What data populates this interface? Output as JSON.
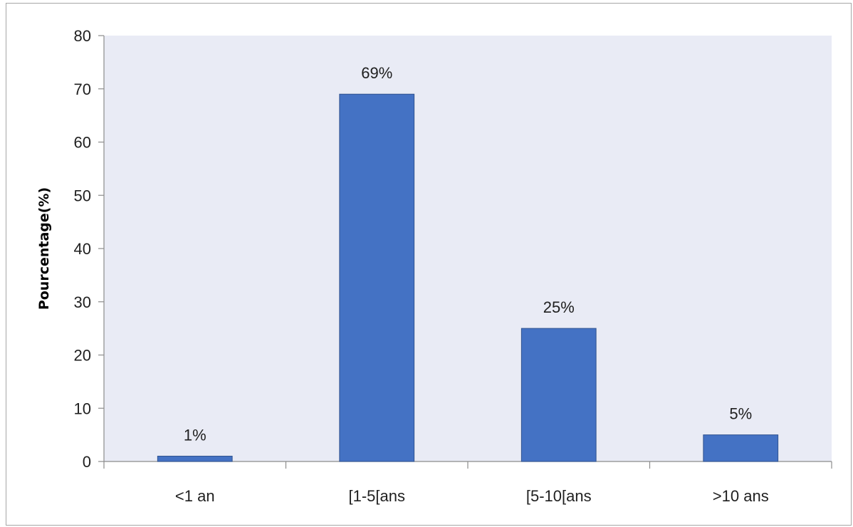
{
  "chart_data": {
    "type": "bar",
    "title": "",
    "xlabel": "",
    "ylabel": "Pourcentage(%)",
    "categories": [
      "<1 an",
      "[1-5[ans",
      "[5-10[ans",
      ">10 ans"
    ],
    "values": [
      1,
      69,
      25,
      5
    ],
    "data_labels": [
      "1%",
      "69%",
      "25%",
      "5%"
    ],
    "ylim": [
      0,
      80
    ],
    "yticks": [
      "0",
      "10",
      "20",
      "30",
      "40",
      "50",
      "60",
      "70",
      "80"
    ],
    "grid": false,
    "legend": "none",
    "colors": {
      "bar": "#4472c4",
      "bar_edge": "#2f528f",
      "plot_background": "#e9ebf5",
      "axis": "#8c8c8c"
    }
  }
}
